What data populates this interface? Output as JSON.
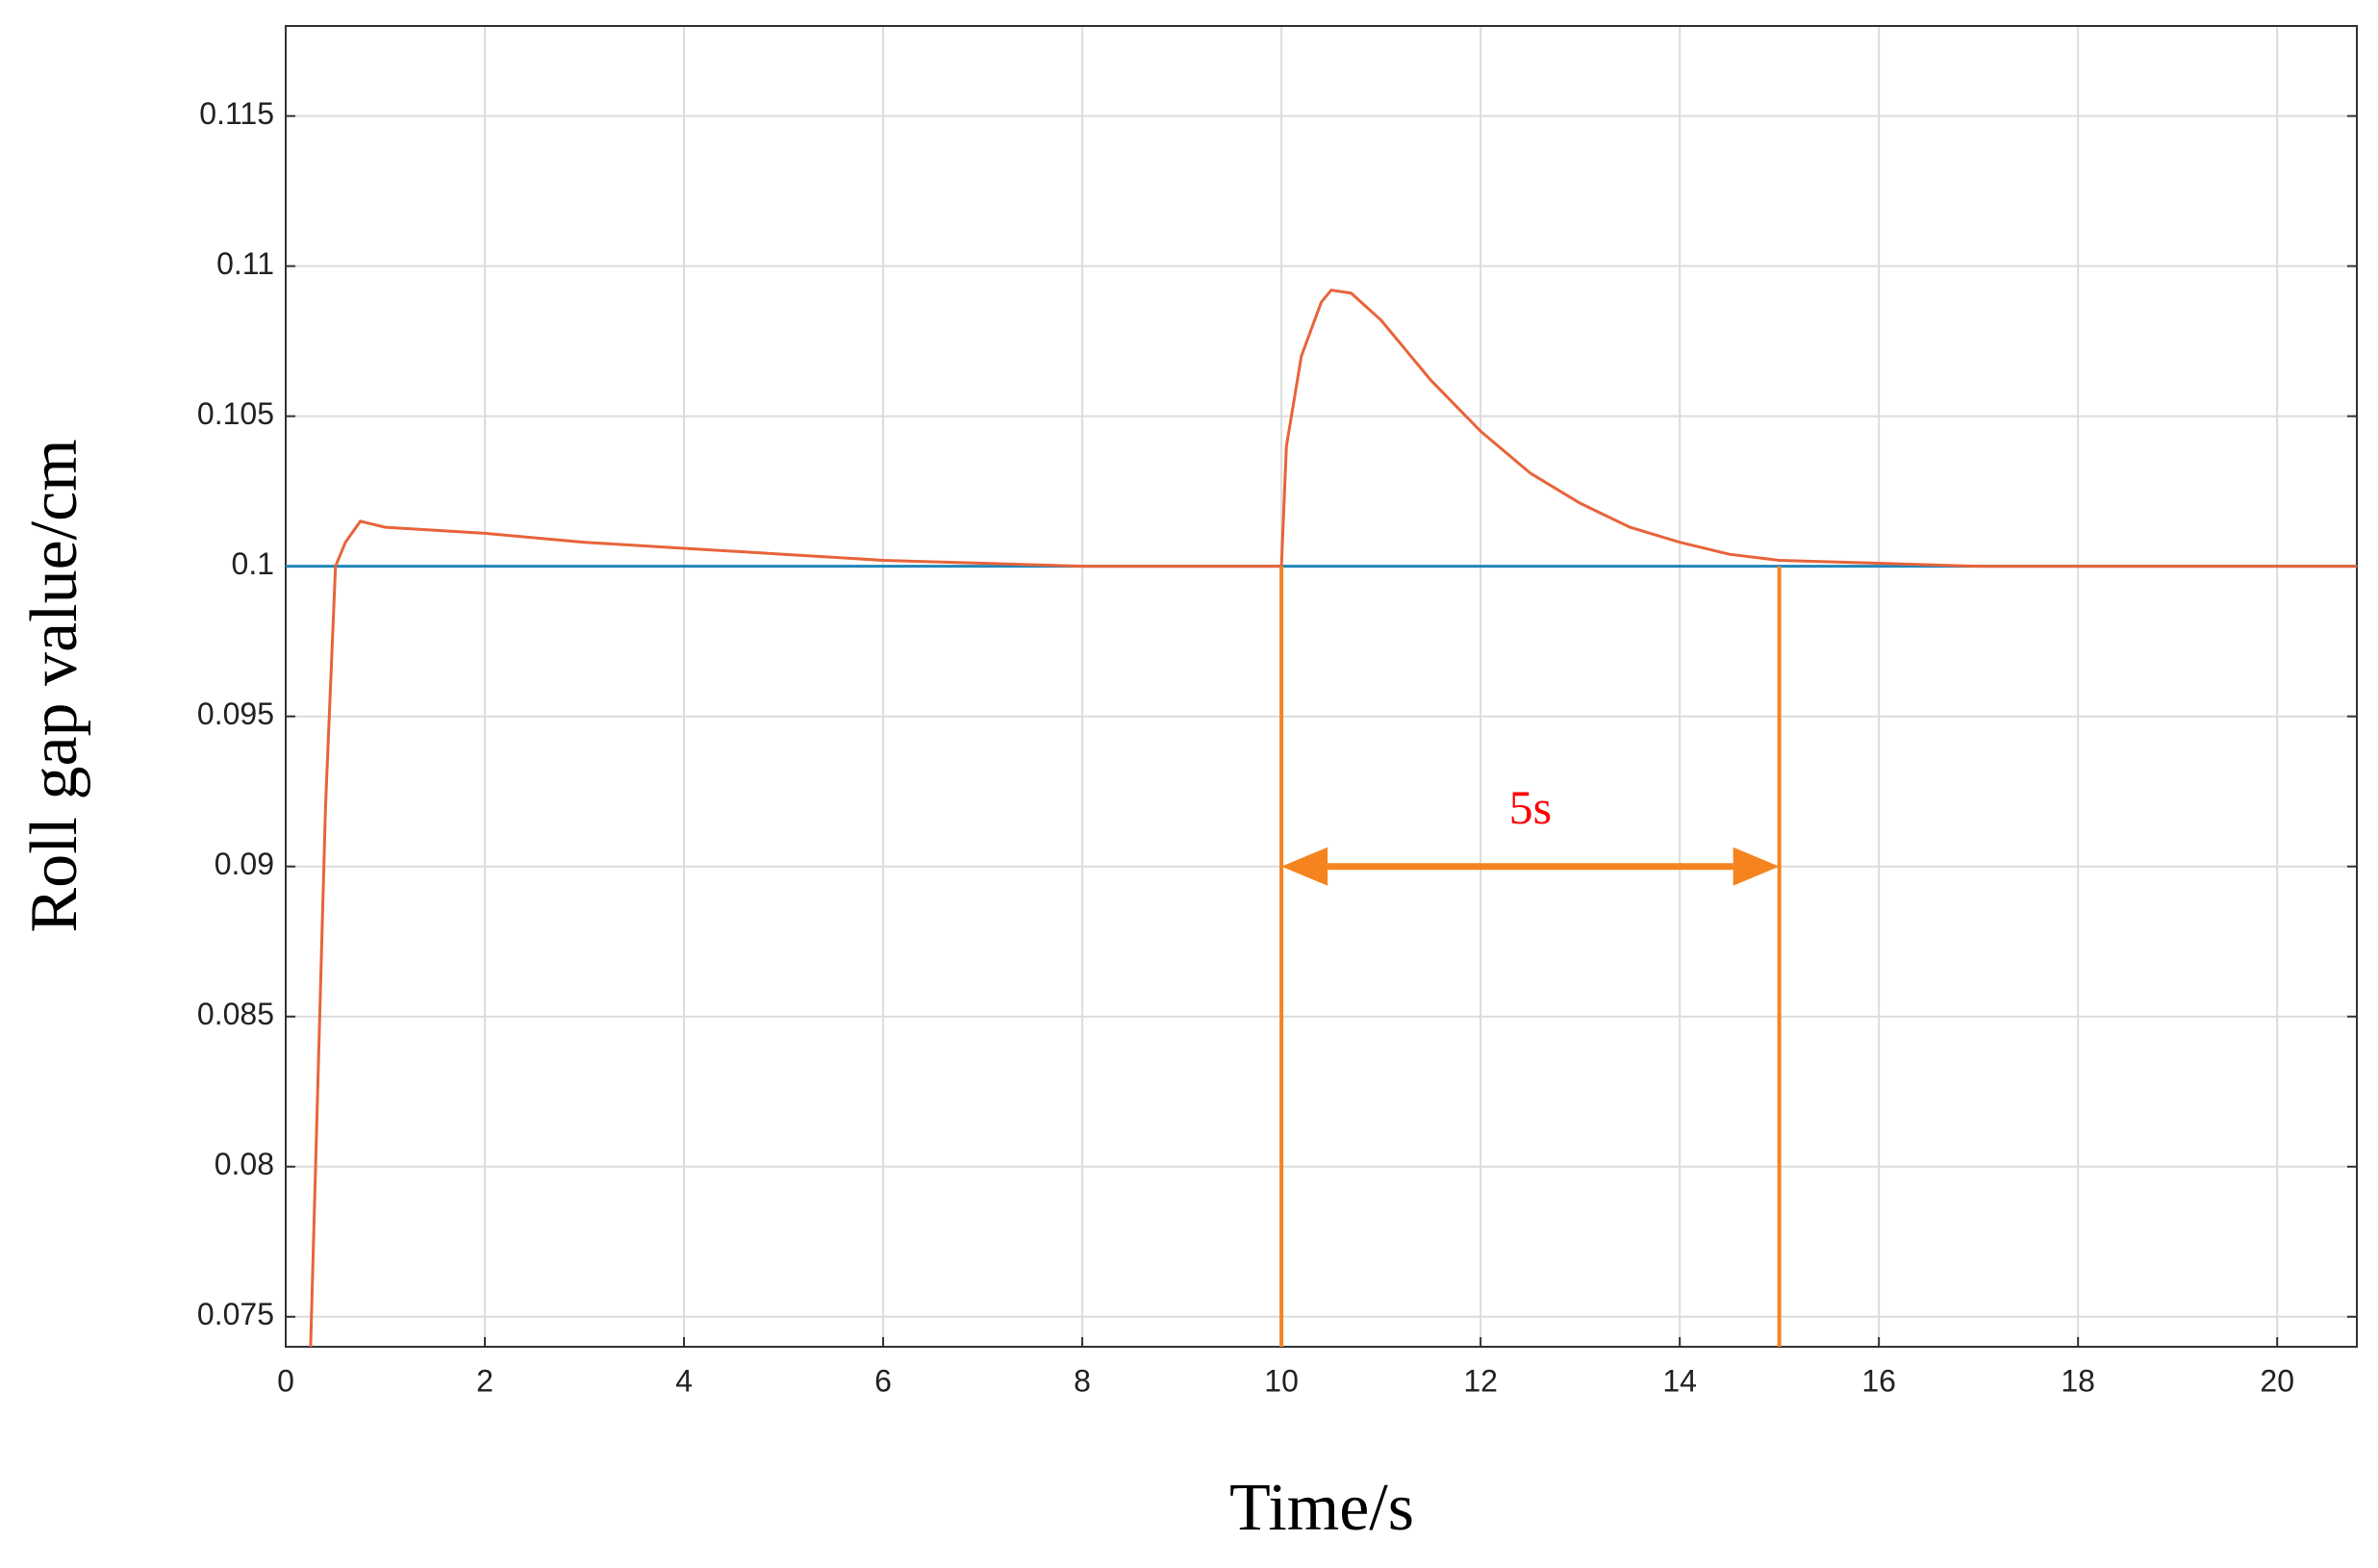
{
  "chart_data": {
    "type": "line",
    "xlabel": "Time/s",
    "ylabel": "Roll gap value/cm",
    "xlim": [
      0,
      20.8
    ],
    "ylim": [
      0.074,
      0.118
    ],
    "xticks": [
      0,
      2,
      4,
      6,
      8,
      10,
      12,
      14,
      16,
      18,
      20
    ],
    "yticks": [
      0.075,
      0.08,
      0.085,
      0.09,
      0.095,
      0.1,
      0.105,
      0.11,
      0.115
    ],
    "grid": true,
    "series": [
      {
        "color": "#e8643a",
        "x": [
          0.25,
          0.3,
          0.4,
          0.5,
          0.6,
          0.75,
          1,
          2,
          3,
          4,
          5,
          6,
          7,
          8,
          9,
          10,
          10.05,
          10.2,
          10.4,
          10.5,
          10.7,
          11,
          11.5,
          12,
          12.5,
          13,
          13.5,
          14,
          14.5,
          15,
          16,
          17,
          18,
          19,
          20.8
        ],
        "y": [
          0.074,
          0.08,
          0.092,
          0.1,
          0.1008,
          0.1015,
          0.1013,
          0.1011,
          0.1008,
          0.1006,
          0.1004,
          0.1002,
          0.1001,
          0.1,
          0.1,
          0.1,
          0.104,
          0.107,
          0.1088,
          0.1092,
          0.1091,
          0.1082,
          0.1062,
          0.1045,
          0.1031,
          0.1021,
          0.1013,
          0.1008,
          0.1004,
          0.1002,
          0.1001,
          0.1,
          0.1,
          0.1,
          0.1
        ]
      },
      {
        "color": "#1f86b8",
        "x": [
          0,
          20.8
        ],
        "y": [
          0.1,
          0.1
        ]
      }
    ],
    "annotation": {
      "text": "5s",
      "text_color": "#ff0000",
      "color": "#f5841f",
      "x": [
        10,
        15
      ],
      "y": 0.09,
      "top": 0.1
    }
  }
}
